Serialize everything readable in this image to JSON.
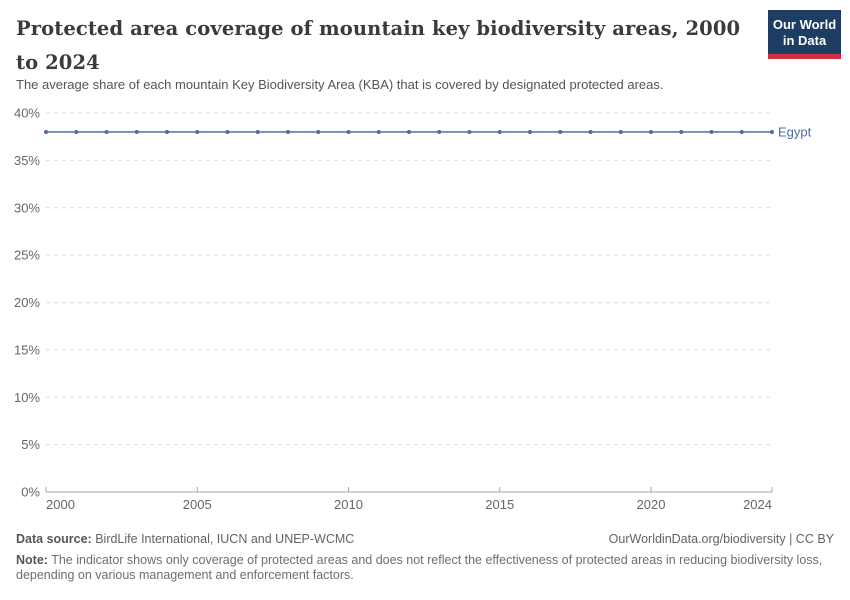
{
  "header": {
    "title": "Protected area coverage of mountain key biodiversity areas, 2000 to 2024",
    "subtitle": "The average share of each mountain Key Biodiversity Area (KBA) that is covered by designated protected areas.",
    "logo_line1": "Our World",
    "logo_line2": "in Data",
    "logo_bg_color": "#1d3d63",
    "logo_stripe_color": "#cf2e41"
  },
  "chart_data": {
    "type": "line",
    "title": "Protected area coverage of mountain key biodiversity areas, 2000 to 2024",
    "xlabel": "",
    "ylabel": "",
    "xlim": [
      2000,
      2024
    ],
    "ylim": [
      0,
      40
    ],
    "x_ticks": [
      2000,
      2005,
      2010,
      2015,
      2020,
      2024
    ],
    "y_ticks": [
      0,
      5,
      10,
      15,
      20,
      25,
      30,
      35,
      40
    ],
    "y_tick_suffix": "%",
    "grid": "horizontal-dashed",
    "legend_position": "line-end-label",
    "x": [
      2000,
      2001,
      2002,
      2003,
      2004,
      2005,
      2006,
      2007,
      2008,
      2009,
      2010,
      2011,
      2012,
      2013,
      2014,
      2015,
      2016,
      2017,
      2018,
      2019,
      2020,
      2021,
      2022,
      2023,
      2024
    ],
    "series": [
      {
        "name": "Egypt",
        "color": "#4c6d9f",
        "values": [
          38,
          38,
          38,
          38,
          38,
          38,
          38,
          38,
          38,
          38,
          38,
          38,
          38,
          38,
          38,
          38,
          38,
          38,
          38,
          38,
          38,
          38,
          38,
          38,
          38
        ]
      }
    ],
    "axis_color": "#a5a5a5",
    "gridline_color": "#dcdcdc",
    "tick_label_color": "#666666"
  },
  "footer": {
    "datasource_label": "Data source:",
    "datasource_value": " BirdLife International, IUCN and UNEP-WCMC",
    "credit": "OurWorldinData.org/biodiversity | CC BY",
    "note_label": "Note:",
    "note_value": " The indicator shows only coverage of protected areas and does not reflect the effectiveness of protected areas in reducing biodiversity loss, depending on various management and enforcement factors."
  }
}
